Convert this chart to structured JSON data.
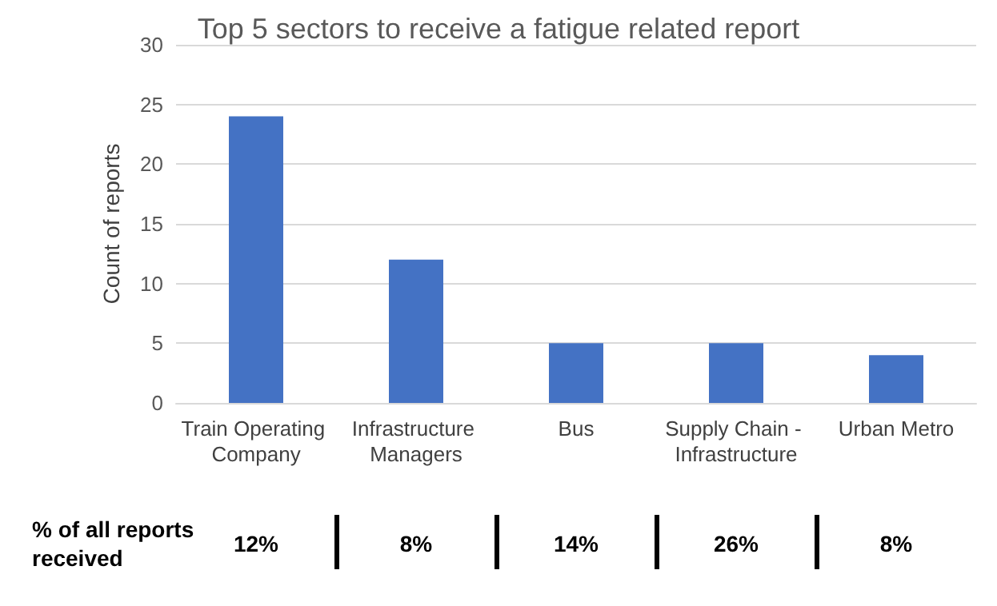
{
  "chart_data": {
    "type": "bar",
    "title": "Top 5 sectors to receive a fatigue related report",
    "ylabel": "Count of reports",
    "categories": [
      "Train Operating Company",
      "Infrastructure Managers",
      "Bus",
      "Supply Chain - Infrastructure",
      "Urban Metro"
    ],
    "values": [
      24,
      12,
      5,
      5,
      4
    ],
    "color": "#4472c4",
    "ylim": [
      0,
      30
    ],
    "yticks": [
      0,
      5,
      10,
      15,
      20,
      25,
      30
    ],
    "grid": "y",
    "annotations": [
      "% of all reports received",
      "12%",
      "8%",
      "14%",
      "26%",
      "8%"
    ]
  }
}
